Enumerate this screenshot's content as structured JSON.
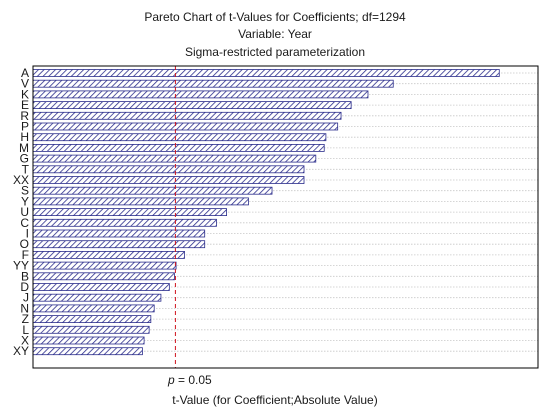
{
  "chart": {
    "title": "Pareto Chart of t-Values for Coefficients; df=1294",
    "subtitle": "Variable: Year",
    "subtitle2": "Sigma-restricted parameterization",
    "xlabel": "t-Value (for Coefficient;Absolute Value)",
    "threshold_label_italic": "p",
    "threshold_label_rest": " = 0.05"
  },
  "colors": {
    "bar_stroke": "#2b2d8c",
    "bar_hatch": "#2b2d8c",
    "threshold_line": "#d0141e",
    "grid": "#c8c8c8",
    "frame": "#000000"
  },
  "chart_data": {
    "type": "bar",
    "orientation": "horizontal",
    "categories": [
      "A",
      "V",
      "K",
      "E",
      "R",
      "P",
      "H",
      "M",
      "G",
      "T",
      "XX",
      "S",
      "Y",
      "U",
      "C",
      "I",
      "O",
      "F",
      "YY",
      "B",
      "D",
      "J",
      "N",
      "Z",
      "L",
      "X",
      "XY"
    ],
    "values": [
      21.2,
      14.9,
      13.4,
      12.4,
      11.8,
      11.6,
      10.9,
      10.8,
      10.3,
      9.6,
      9.6,
      7.7,
      6.3,
      5.0,
      4.4,
      3.7,
      3.7,
      2.5,
      2.0,
      1.9,
      1.6,
      1.1,
      0.7,
      0.5,
      0.4,
      0.1,
      0.0
    ],
    "threshold": 1.96,
    "xlim": [
      -6.5,
      23.5
    ],
    "grid": true,
    "hatched_bars": true,
    "xlabel": "t-Value (for Coefficient;Absolute Value)"
  }
}
